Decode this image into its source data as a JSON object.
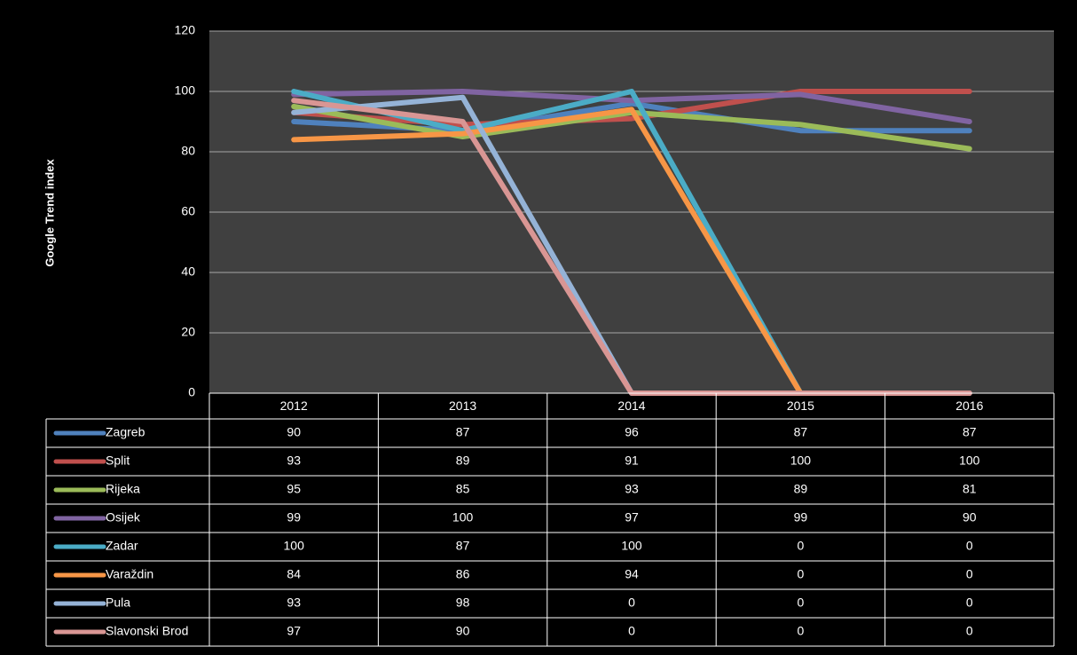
{
  "chart_data": {
    "type": "line",
    "ylabel": "Google Trend index",
    "categories": [
      "2012",
      "2013",
      "2014",
      "2015",
      "2016"
    ],
    "ylim": [
      0,
      120
    ],
    "yticks": [
      0,
      20,
      40,
      60,
      80,
      100,
      120
    ],
    "grid": true,
    "data_table": true,
    "series": [
      {
        "name": "Zagreb",
        "color": "#4f81bd",
        "values": [
          90,
          87,
          96,
          87,
          87
        ]
      },
      {
        "name": "Split",
        "color": "#c0504d",
        "values": [
          93,
          89,
          91,
          100,
          100
        ]
      },
      {
        "name": "Rijeka",
        "color": "#9bbb59",
        "values": [
          95,
          85,
          93,
          89,
          81
        ]
      },
      {
        "name": "Osijek",
        "color": "#8064a2",
        "values": [
          99,
          100,
          97,
          99,
          90
        ]
      },
      {
        "name": "Zadar",
        "color": "#4bacc6",
        "values": [
          100,
          87,
          100,
          0,
          0
        ]
      },
      {
        "name": "Varaždin",
        "color": "#f79646",
        "values": [
          84,
          86,
          94,
          0,
          0
        ]
      },
      {
        "name": "Pula",
        "color": "#95b3d7",
        "values": [
          93,
          98,
          0,
          0,
          0
        ]
      },
      {
        "name": "Slavonski Brod",
        "color": "#d99694",
        "values": [
          97,
          90,
          0,
          0,
          0
        ]
      }
    ]
  }
}
